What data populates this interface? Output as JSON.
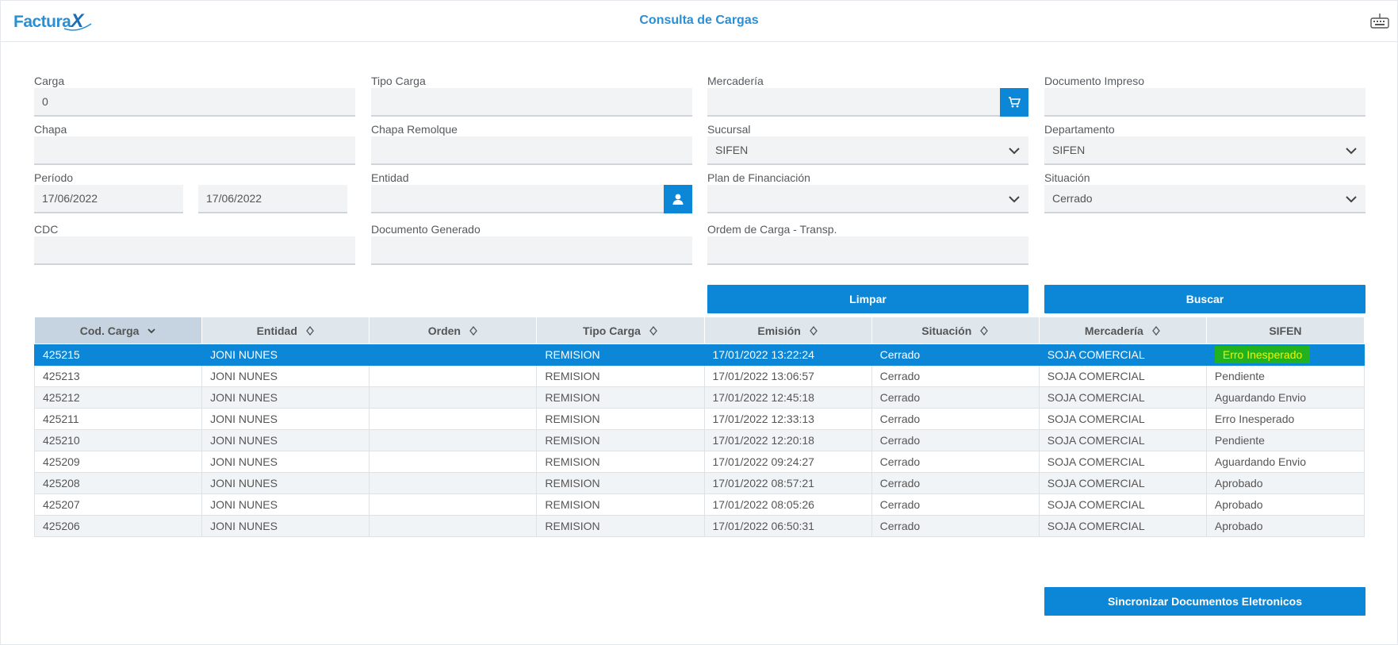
{
  "header": {
    "logo_text": "Factura",
    "logo_x": "X",
    "title": "Consulta de Cargas"
  },
  "form": {
    "carga": {
      "label": "Carga",
      "value": "0"
    },
    "tipo_carga": {
      "label": "Tipo Carga",
      "value": ""
    },
    "mercaderia": {
      "label": "Mercadería",
      "value": ""
    },
    "documento_impreso": {
      "label": "Documento Impreso",
      "value": ""
    },
    "chapa": {
      "label": "Chapa",
      "value": ""
    },
    "chapa_remolque": {
      "label": "Chapa Remolque",
      "value": ""
    },
    "sucursal": {
      "label": "Sucursal",
      "value": "SIFEN"
    },
    "departamento": {
      "label": "Departamento",
      "value": "SIFEN"
    },
    "periodo": {
      "label": "Período",
      "from": "17/06/2022",
      "to": "17/06/2022"
    },
    "entidad": {
      "label": "Entidad",
      "value": ""
    },
    "plan": {
      "label": "Plan de Financiación",
      "value": ""
    },
    "situacion": {
      "label": "Situación",
      "value": "Cerrado"
    },
    "cdc": {
      "label": "CDC",
      "value": ""
    },
    "documento_generado": {
      "label": "Documento Generado",
      "value": ""
    },
    "orden_carga": {
      "label": "Ordem de Carga - Transp.",
      "value": ""
    }
  },
  "buttons": {
    "limpar": "Limpar",
    "buscar": "Buscar",
    "sincronizar": "Sincronizar Documentos Eletronicos"
  },
  "table": {
    "columns": [
      "Cod. Carga",
      "Entidad",
      "Orden",
      "Tipo Carga",
      "Emisión",
      "Situación",
      "Mercadería",
      "SIFEN"
    ],
    "rows": [
      [
        "425215",
        "JONI NUNES",
        "",
        "REMISION",
        "17/01/2022 13:22:24",
        "Cerrado",
        "SOJA COMERCIAL",
        "Erro Inesperado"
      ],
      [
        "425213",
        "JONI NUNES",
        "",
        "REMISION",
        "17/01/2022 13:06:57",
        "Cerrado",
        "SOJA COMERCIAL",
        "Pendiente"
      ],
      [
        "425212",
        "JONI NUNES",
        "",
        "REMISION",
        "17/01/2022 12:45:18",
        "Cerrado",
        "SOJA COMERCIAL",
        "Aguardando Envio"
      ],
      [
        "425211",
        "JONI NUNES",
        "",
        "REMISION",
        "17/01/2022 12:33:13",
        "Cerrado",
        "SOJA COMERCIAL",
        "Erro Inesperado"
      ],
      [
        "425210",
        "JONI NUNES",
        "",
        "REMISION",
        "17/01/2022 12:20:18",
        "Cerrado",
        "SOJA COMERCIAL",
        "Pendiente"
      ],
      [
        "425209",
        "JONI NUNES",
        "",
        "REMISION",
        "17/01/2022 09:24:27",
        "Cerrado",
        "SOJA COMERCIAL",
        "Aguardando Envio"
      ],
      [
        "425208",
        "JONI NUNES",
        "",
        "REMISION",
        "17/01/2022 08:57:21",
        "Cerrado",
        "SOJA COMERCIAL",
        "Aprobado"
      ],
      [
        "425207",
        "JONI NUNES",
        "",
        "REMISION",
        "17/01/2022 08:05:26",
        "Cerrado",
        "SOJA COMERCIAL",
        "Aprobado"
      ],
      [
        "425206",
        "JONI NUNES",
        "",
        "REMISION",
        "17/01/2022 06:50:31",
        "Cerrado",
        "SOJA COMERCIAL",
        "Aprobado"
      ]
    ],
    "selected_row": 0
  },
  "icons": {
    "mercaderia_button": "cart-icon",
    "entidad_button": "user-icon",
    "select": "chevron-down-icon",
    "sort": "sort-icon",
    "header_right": "keyboard-icon"
  },
  "colors": {
    "accent": "#0c86d6",
    "highlight_bg": "#21b21e",
    "highlight_text": "#f4f100"
  }
}
